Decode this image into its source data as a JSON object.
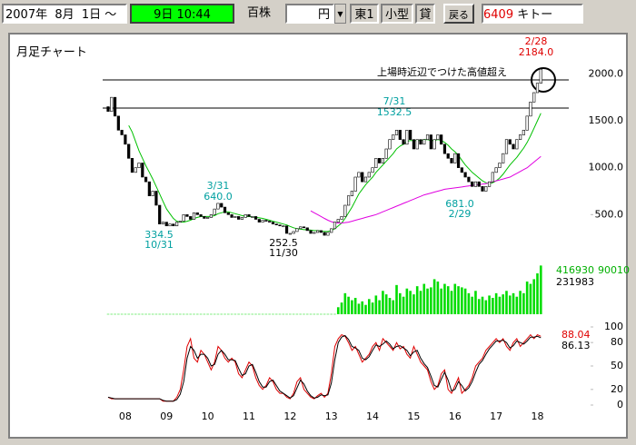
{
  "toolbar": {
    "date": "2007年  8月  1日 ～",
    "time": "9日 10:44",
    "unit": "百株",
    "currency": "円",
    "market": "東1",
    "size": "小型",
    "lending": "貸",
    "back_button": "戻る",
    "code": "6409",
    "name": "キトー"
  },
  "chart_data": [
    {
      "type": "candlestick",
      "title": "月足チャート",
      "ylim": [
        0,
        2400
      ],
      "yticks": [
        {
          "value": 2000,
          "label": "2000.0"
        },
        {
          "value": 1500,
          "label": "1500.0"
        },
        {
          "value": 1000,
          "label": "1000.0"
        },
        {
          "value": 500,
          "label": "500.0"
        }
      ],
      "hlines": [
        1935,
        1635
      ],
      "open": [
        1650,
        1600,
        1750,
        1550,
        1400,
        1350,
        1250,
        1100,
        950,
        1000,
        1050,
        900,
        850,
        700,
        750,
        600,
        400,
        420,
        380,
        400,
        380,
        420,
        430,
        500,
        480,
        450,
        520,
        500,
        480,
        460,
        470,
        500,
        560,
        620,
        580,
        520,
        500,
        470,
        480,
        450,
        470,
        500,
        480,
        480,
        450,
        420,
        440,
        430,
        420,
        400,
        390,
        380,
        380,
        300,
        300,
        320,
        350,
        370,
        360,
        330,
        300,
        310,
        330,
        310,
        280,
        310,
        350,
        420,
        450,
        480,
        600,
        700,
        750,
        900,
        950,
        850,
        900,
        950,
        1000,
        1100,
        1050,
        1100,
        1200,
        1300,
        1350,
        1400,
        1300,
        1250,
        1400,
        1300,
        1200,
        1300,
        1250,
        1300,
        1350,
        1200,
        1300,
        1350,
        1250,
        1150,
        1100,
        1050,
        1150,
        1000,
        950,
        900,
        850,
        800,
        850,
        800,
        750,
        800,
        850,
        950,
        1000,
        1050,
        1150,
        1300,
        1250,
        1200,
        1300,
        1350,
        1400,
        1550,
        1700,
        1800,
        1900
      ],
      "close": [
        1600,
        1750,
        1550,
        1400,
        1350,
        1250,
        1100,
        950,
        1000,
        1050,
        900,
        850,
        700,
        750,
        600,
        400,
        420,
        380,
        400,
        380,
        420,
        430,
        500,
        480,
        450,
        520,
        500,
        480,
        460,
        470,
        500,
        560,
        620,
        580,
        520,
        500,
        470,
        480,
        450,
        470,
        500,
        480,
        480,
        450,
        420,
        440,
        430,
        420,
        400,
        390,
        380,
        380,
        300,
        300,
        320,
        350,
        370,
        360,
        330,
        300,
        310,
        330,
        310,
        280,
        310,
        350,
        420,
        450,
        480,
        600,
        700,
        750,
        900,
        950,
        850,
        900,
        950,
        1000,
        1100,
        1050,
        1100,
        1200,
        1300,
        1350,
        1400,
        1300,
        1250,
        1400,
        1300,
        1200,
        1300,
        1250,
        1300,
        1350,
        1200,
        1300,
        1350,
        1250,
        1150,
        1100,
        1050,
        1150,
        1000,
        950,
        900,
        850,
        800,
        850,
        800,
        750,
        800,
        850,
        950,
        1000,
        1050,
        1150,
        1300,
        1250,
        1200,
        1300,
        1350,
        1400,
        1550,
        1700,
        1800,
        1900,
        2050
      ],
      "color": "#000000",
      "series": [
        {
          "color": "#00c000",
          "values": [
            null,
            null,
            null,
            null,
            null,
            null,
            1450,
            1380,
            1280,
            1180,
            1100,
            1020,
            950,
            880,
            800,
            720,
            640,
            560,
            510,
            460,
            430,
            420,
            420,
            430,
            440,
            460,
            470,
            480,
            480,
            480,
            480,
            490,
            510,
            520,
            530,
            530,
            520,
            510,
            500,
            490,
            480,
            480,
            475,
            470,
            465,
            460,
            450,
            440,
            430,
            420,
            410,
            400,
            390,
            375,
            360,
            350,
            345,
            340,
            340,
            335,
            330,
            330,
            325,
            320,
            320,
            330,
            350,
            380,
            410,
            460,
            520,
            580,
            650,
            720,
            770,
            820,
            860,
            900,
            950,
            990,
            1030,
            1070,
            1110,
            1150,
            1200,
            1230,
            1250,
            1280,
            1290,
            1290,
            1290,
            1290,
            1300,
            1300,
            1290,
            1290,
            1300,
            1290,
            1270,
            1240,
            1200,
            1170,
            1130,
            1080,
            1030,
            990,
            950,
            920,
            890,
            860,
            840,
            830,
            840,
            860,
            890,
            930,
            980,
            1030,
            1070,
            1110,
            1160,
            1210,
            1270,
            1340,
            1420,
            1500,
            1580
          ]
        },
        {
          "color": "#e000e0",
          "values": [
            null,
            null,
            null,
            null,
            null,
            null,
            null,
            null,
            null,
            null,
            null,
            null,
            null,
            null,
            null,
            null,
            null,
            null,
            null,
            null,
            null,
            null,
            null,
            null,
            null,
            null,
            null,
            null,
            null,
            null,
            null,
            null,
            null,
            null,
            null,
            null,
            null,
            null,
            null,
            null,
            null,
            null,
            null,
            null,
            null,
            null,
            null,
            null,
            null,
            null,
            null,
            null,
            null,
            null,
            null,
            null,
            null,
            null,
            null,
            540,
            520,
            500,
            480,
            460,
            440,
            425,
            415,
            410,
            410,
            415,
            420,
            430,
            440,
            450,
            460,
            470,
            480,
            490,
            500,
            515,
            530,
            545,
            560,
            575,
            590,
            605,
            620,
            635,
            650,
            665,
            680,
            695,
            710,
            720,
            730,
            740,
            750,
            760,
            770,
            775,
            780,
            785,
            790,
            795,
            800,
            805,
            810,
            815,
            820,
            825,
            830,
            840,
            850,
            860,
            870,
            880,
            890,
            900,
            920,
            940,
            960,
            980,
            1000,
            1030,
            1060,
            1090,
            1120
          ]
        }
      ],
      "annotations": [
        "上場時近辺でつけた高値超え",
        "2/28",
        "2184.0",
        "7/31",
        "1532.5",
        "3/31",
        "640.0",
        "334.5",
        "10/31",
        "252.5",
        "11/30",
        "681.0",
        "2/29"
      ]
    },
    {
      "type": "bar",
      "color": "#00dd00",
      "ylim": [
        0,
        420000
      ],
      "values": [
        2000,
        2000,
        2000,
        2000,
        2000,
        2000,
        2000,
        2000,
        2000,
        2000,
        2000,
        2000,
        2000,
        2000,
        2000,
        2000,
        2000,
        2000,
        2000,
        2000,
        2000,
        2000,
        2000,
        2000,
        2000,
        2000,
        2000,
        2000,
        2000,
        2000,
        2000,
        2000,
        2000,
        2000,
        2000,
        2000,
        2000,
        2000,
        2000,
        2000,
        2000,
        2000,
        2000,
        2000,
        2000,
        2000,
        2000,
        2000,
        2000,
        2000,
        2000,
        2000,
        2000,
        2000,
        2000,
        2000,
        2000,
        2000,
        2000,
        2000,
        2000,
        2000,
        2000,
        2000,
        2000,
        2000,
        2000,
        60000,
        100000,
        180000,
        150000,
        120000,
        140000,
        90000,
        110000,
        80000,
        130000,
        100000,
        160000,
        120000,
        200000,
        170000,
        140000,
        120000,
        250000,
        180000,
        150000,
        220000,
        200000,
        170000,
        240000,
        200000,
        260000,
        220000,
        230000,
        300000,
        280000,
        220000,
        260000,
        240000,
        200000,
        260000,
        240000,
        230000,
        220000,
        180000,
        150000,
        200000,
        130000,
        150000,
        120000,
        160000,
        140000,
        180000,
        150000,
        170000,
        200000,
        160000,
        180000,
        150000,
        200000,
        180000,
        280000,
        260000,
        300000,
        350000,
        416930
      ],
      "annotations": [
        "416930",
        "231983",
        "90010"
      ]
    },
    {
      "type": "line",
      "ylim": [
        0,
        100
      ],
      "yticks": [
        100,
        80,
        50,
        20,
        0
      ],
      "categories": [
        null,
        null,
        null,
        null,
        null,
        "08",
        null,
        null,
        null,
        null,
        null,
        null,
        null,
        null,
        null,
        null,
        null,
        "09",
        null,
        null,
        null,
        null,
        null,
        null,
        null,
        null,
        null,
        null,
        null,
        "10",
        null,
        null,
        null,
        null,
        null,
        null,
        null,
        null,
        null,
        null,
        null,
        "11",
        null,
        null,
        null,
        null,
        null,
        null,
        null,
        null,
        null,
        null,
        null,
        "12",
        null,
        null,
        null,
        null,
        null,
        null,
        null,
        null,
        null,
        null,
        null,
        "13",
        null,
        null,
        null,
        null,
        null,
        null,
        null,
        null,
        null,
        null,
        null,
        "14",
        null,
        null,
        null,
        null,
        null,
        null,
        null,
        null,
        null,
        null,
        null,
        "15",
        null,
        null,
        null,
        null,
        null,
        null,
        null,
        null,
        null,
        null,
        null,
        "16",
        null,
        null,
        null,
        null,
        null,
        null,
        null,
        null,
        null,
        null,
        null,
        "17",
        null,
        null,
        null,
        null,
        null,
        null,
        null,
        null,
        null,
        null,
        null,
        "18",
        null
      ],
      "series": [
        {
          "color": "#e00000",
          "values": [
            10,
            8,
            8,
            8,
            8,
            8,
            8,
            8,
            8,
            8,
            8,
            8,
            8,
            8,
            8,
            8,
            5,
            5,
            5,
            5,
            10,
            20,
            45,
            75,
            85,
            60,
            55,
            70,
            65,
            55,
            45,
            55,
            75,
            70,
            60,
            55,
            60,
            55,
            40,
            35,
            45,
            55,
            50,
            35,
            25,
            20,
            25,
            35,
            30,
            20,
            15,
            15,
            10,
            8,
            15,
            30,
            35,
            20,
            15,
            10,
            8,
            12,
            15,
            10,
            15,
            40,
            75,
            85,
            90,
            88,
            80,
            70,
            75,
            65,
            55,
            60,
            65,
            75,
            80,
            70,
            85,
            80,
            75,
            70,
            80,
            72,
            75,
            65,
            60,
            75,
            65,
            55,
            50,
            45,
            30,
            20,
            25,
            40,
            45,
            20,
            15,
            25,
            35,
            15,
            20,
            25,
            35,
            50,
            55,
            60,
            70,
            75,
            80,
            85,
            80,
            85,
            75,
            70,
            80,
            85,
            75,
            80,
            85,
            90,
            85,
            90,
            88.04
          ]
        },
        {
          "color": "#000000",
          "values": [
            10,
            9,
            8,
            8,
            8,
            8,
            8,
            8,
            8,
            8,
            8,
            8,
            8,
            8,
            8,
            8,
            6,
            5,
            5,
            5,
            7,
            14,
            30,
            60,
            75,
            70,
            60,
            65,
            65,
            60,
            50,
            52,
            65,
            70,
            65,
            58,
            58,
            57,
            47,
            38,
            40,
            50,
            52,
            42,
            30,
            23,
            23,
            30,
            32,
            25,
            18,
            15,
            12,
            9,
            12,
            22,
            32,
            27,
            18,
            12,
            9,
            10,
            13,
            12,
            13,
            28,
            58,
            80,
            87,
            89,
            84,
            75,
            73,
            70,
            60,
            58,
            62,
            70,
            77,
            75,
            78,
            82,
            78,
            72,
            75,
            76,
            73,
            70,
            63,
            68,
            70,
            60,
            53,
            48,
            37,
            25,
            23,
            33,
            42,
            32,
            18,
            20,
            30,
            25,
            18,
            22,
            30,
            42,
            52,
            57,
            65,
            72,
            77,
            82,
            82,
            83,
            80,
            73,
            76,
            82,
            80,
            78,
            82,
            87,
            87,
            88,
            86.13
          ]
        }
      ],
      "annotations": [
        "88.04",
        "86.13"
      ]
    }
  ]
}
